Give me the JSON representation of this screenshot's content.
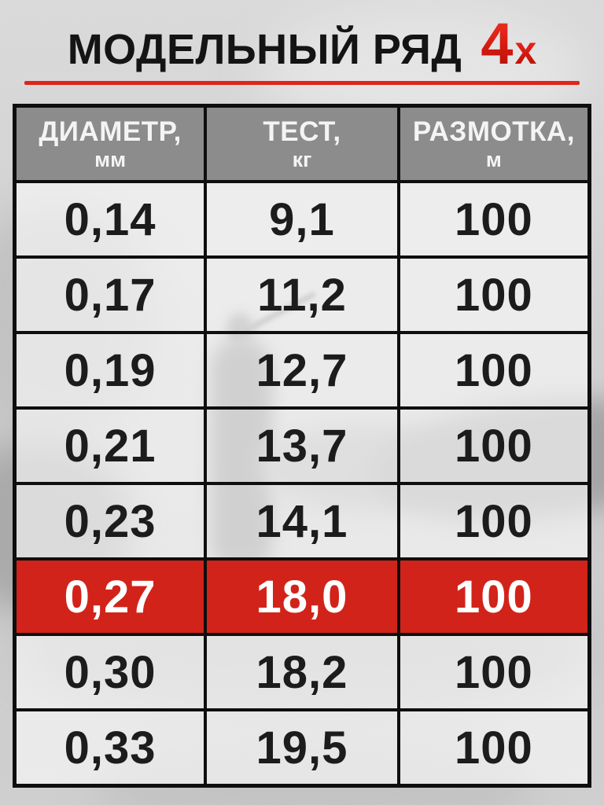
{
  "header": {
    "title": "МОДЕЛЬНЫЙ РЯД",
    "highlight_big": "4",
    "highlight_small": "x"
  },
  "colors": {
    "accent_red": "#d2231a",
    "underline_red": "#e0241a",
    "header_gray": "#8c8c8c",
    "border_black": "#0e0e0e",
    "text_dark": "#1c1c1c",
    "text_white": "#ffffff",
    "page_bg": "#d2d2d2"
  },
  "chart_data": {
    "type": "table",
    "title": "МОДЕЛЬНЫЙ РЯД 4x",
    "columns": [
      {
        "label": "ДИАМЕТР,",
        "unit": "мм"
      },
      {
        "label": "ТЕСТ,",
        "unit": "кг"
      },
      {
        "label": "РАЗМОТКА,",
        "unit": "м"
      }
    ],
    "rows": [
      [
        "0,14",
        "9,1",
        "100"
      ],
      [
        "0,17",
        "11,2",
        "100"
      ],
      [
        "0,19",
        "12,7",
        "100"
      ],
      [
        "0,21",
        "13,7",
        "100"
      ],
      [
        "0,23",
        "14,1",
        "100"
      ],
      [
        "0,27",
        "18,0",
        "100"
      ],
      [
        "0,30",
        "18,2",
        "100"
      ],
      [
        "0,33",
        "19,5",
        "100"
      ]
    ],
    "highlighted_row_index": 5,
    "highlighted_row": [
      "0,27",
      "18,0",
      "100"
    ],
    "layout": {
      "legend": "none",
      "grid": "black 4px borders",
      "header_style": "gray band, white text"
    }
  }
}
